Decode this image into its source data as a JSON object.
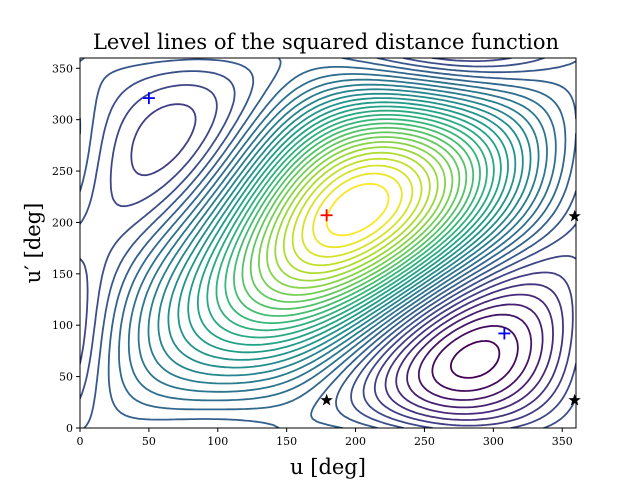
{
  "chart_data": {
    "type": "contour",
    "title": "Level lines of the squared distance function",
    "xlabel": "u [deg]",
    "ylabel": "u′ [deg]",
    "xlim": [
      0,
      360
    ],
    "ylim": [
      0,
      360
    ],
    "xticks": [
      0,
      50,
      100,
      150,
      200,
      250,
      300,
      350
    ],
    "yticks": [
      0,
      50,
      100,
      150,
      200,
      250,
      300,
      350
    ],
    "grid": false,
    "colormap": "viridis",
    "markers": [
      {
        "name": "maximum",
        "shape": "plus",
        "color": "#ff0000",
        "x": 179,
        "y": 207
      },
      {
        "name": "minimum",
        "shape": "plus",
        "color": "#0000ff",
        "x": 50,
        "y": 321
      },
      {
        "name": "minimum",
        "shape": "plus",
        "color": "#0000ff",
        "x": 308,
        "y": 92
      },
      {
        "name": "saddle",
        "shape": "star",
        "color": "#000000",
        "x": 179,
        "y": 27
      },
      {
        "name": "saddle",
        "shape": "star",
        "color": "#000000",
        "x": 359,
        "y": 206
      },
      {
        "name": "saddle",
        "shape": "star",
        "color": "#000000",
        "x": 359,
        "y": 27
      }
    ]
  }
}
